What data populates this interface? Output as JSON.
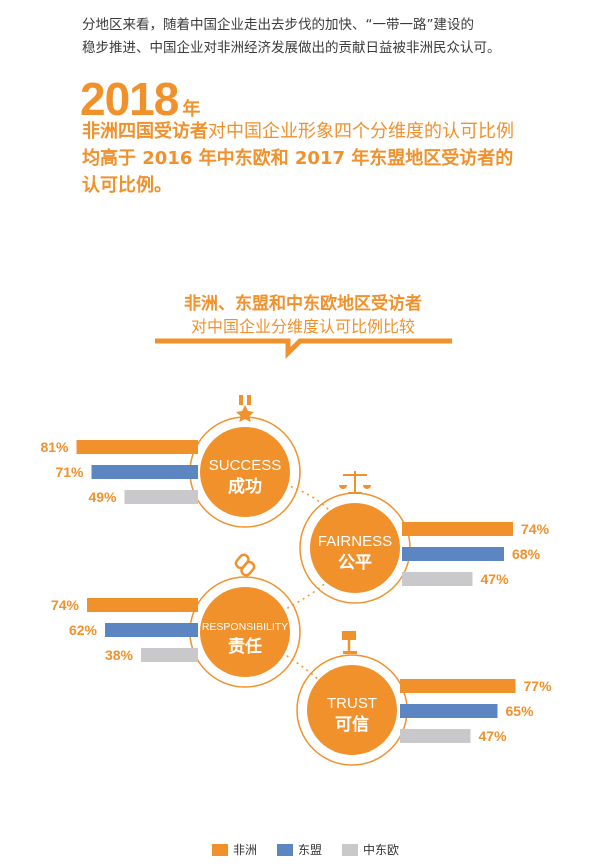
{
  "intro": {
    "line1": "分地区来看，随着中国企业走出去步伐的加快、“一带一路”建设的",
    "line2": "稳步推进、中国企业对非洲经济发展做出的贡献日益被非洲民众认可。"
  },
  "year": {
    "number": "2018",
    "unit": "年"
  },
  "headline": {
    "part1": "非洲四国受访者",
    "part2": "对中国企业形象四个分维度的认可比例",
    "part3": "均高于 2016 年中东欧和 2017 年东盟地区受访者的认可比例。"
  },
  "section": {
    "title_line1": "非洲、东盟和中东欧地区受访者",
    "title_line2": "对中国企业分维度认可比例比较"
  },
  "colors": {
    "africa": "#f0912c",
    "asean": "#5b86c1",
    "cee": "#c9c9cb",
    "accent": "#f0912c"
  },
  "legend": [
    "非洲",
    "东盟",
    "中东欧"
  ],
  "chart_data": {
    "type": "bar",
    "unit": "%",
    "series_names": [
      "非洲",
      "东盟",
      "中东欧"
    ],
    "dimensions": [
      {
        "en": "SUCCESS",
        "zh": "成功",
        "icon": "medal-icon",
        "values": [
          81,
          71,
          49
        ],
        "labels": [
          "81%",
          "71%",
          "49%"
        ]
      },
      {
        "en": "FAIRNESS",
        "zh": "公平",
        "icon": "scales-icon",
        "values": [
          74,
          68,
          47
        ],
        "labels": [
          "74%",
          "68%",
          "47%"
        ]
      },
      {
        "en": "RESPONSIBILITY",
        "zh": "责任",
        "icon": "chain-link-icon",
        "values": [
          74,
          62,
          38
        ],
        "labels": [
          "74%",
          "62%",
          "38%"
        ]
      },
      {
        "en": "TRUST",
        "zh": "可信",
        "icon": "gavel-icon",
        "values": [
          77,
          65,
          47
        ],
        "labels": [
          "77%",
          "65%",
          "47%"
        ]
      }
    ]
  }
}
